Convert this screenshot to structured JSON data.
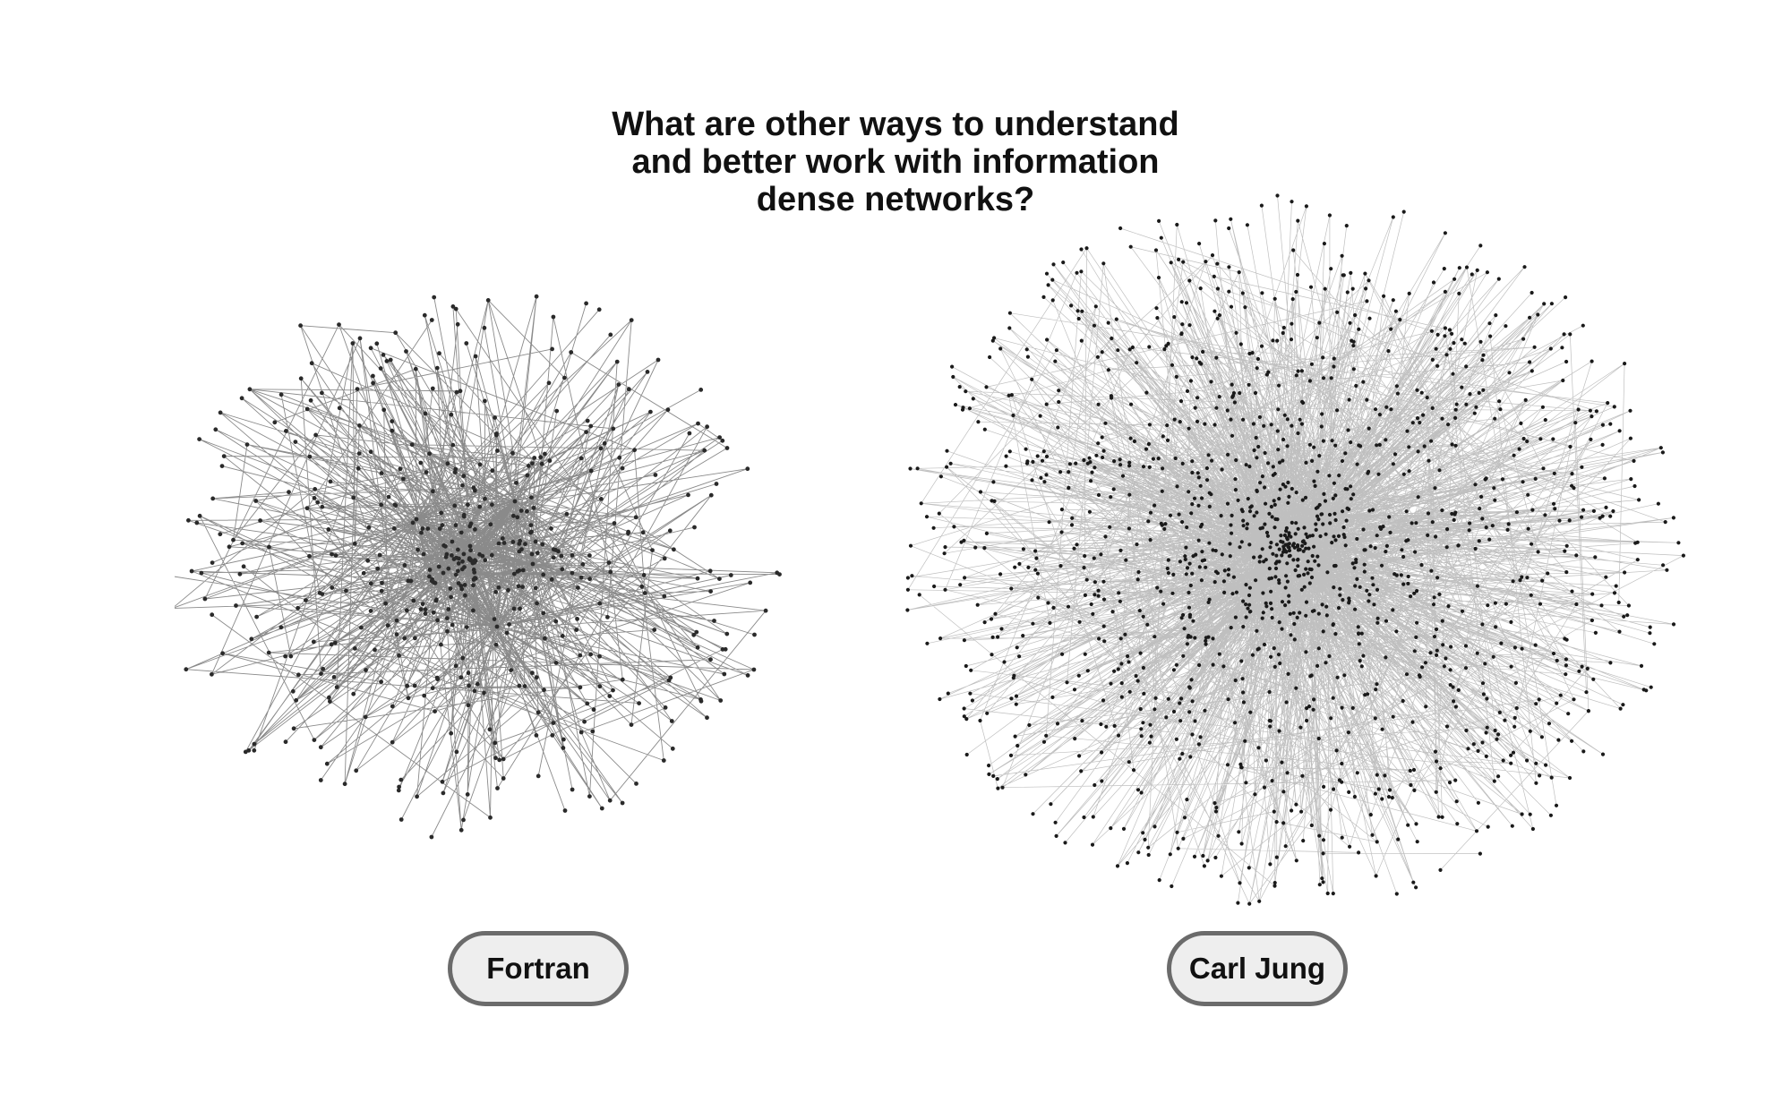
{
  "heading": {
    "lines": [
      "What are other ways to understand",
      "and better work with information",
      "dense networks?"
    ]
  },
  "networks": [
    {
      "id": "fortran",
      "label": "Fortran",
      "color": "#2a2a2a"
    },
    {
      "id": "jung",
      "label": "Carl Jung",
      "color": "#1a1a1a"
    }
  ],
  "colors": {
    "background": "#ffffff",
    "pill_fill": "#eeeeee",
    "pill_border": "#6b6b6b"
  }
}
